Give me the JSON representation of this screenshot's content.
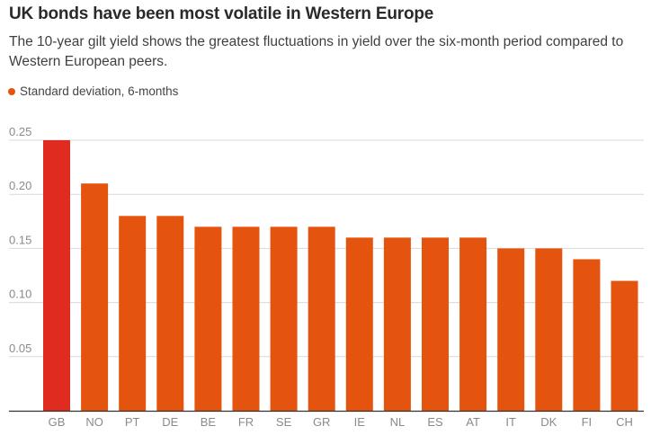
{
  "chart_data": {
    "type": "bar",
    "title": "UK bonds have been most volatile in Western Europe",
    "subtitle": "The 10-year gilt yield shows the greatest fluctuations in yield over the six-month period compared to Western European peers.",
    "legend": "Standard deviation, 6-months",
    "categories": [
      "GB",
      "NO",
      "PT",
      "DE",
      "BE",
      "FR",
      "SE",
      "GR",
      "IE",
      "NL",
      "ES",
      "AT",
      "IT",
      "DK",
      "FI",
      "CH"
    ],
    "values": [
      0.25,
      0.21,
      0.18,
      0.18,
      0.17,
      0.17,
      0.17,
      0.17,
      0.16,
      0.16,
      0.16,
      0.16,
      0.15,
      0.15,
      0.14,
      0.12
    ],
    "highlight_category": "GB",
    "yticks": [
      "0.05",
      "0.10",
      "0.15",
      "0.20",
      "0.25"
    ],
    "ylim": [
      0,
      0.25
    ],
    "xlabel": "",
    "ylabel": "",
    "grid": true,
    "colors": {
      "bar": "#e5540e",
      "highlight": "#e02b21",
      "grid": "#d9d9d9",
      "axis": "#333333"
    }
  }
}
